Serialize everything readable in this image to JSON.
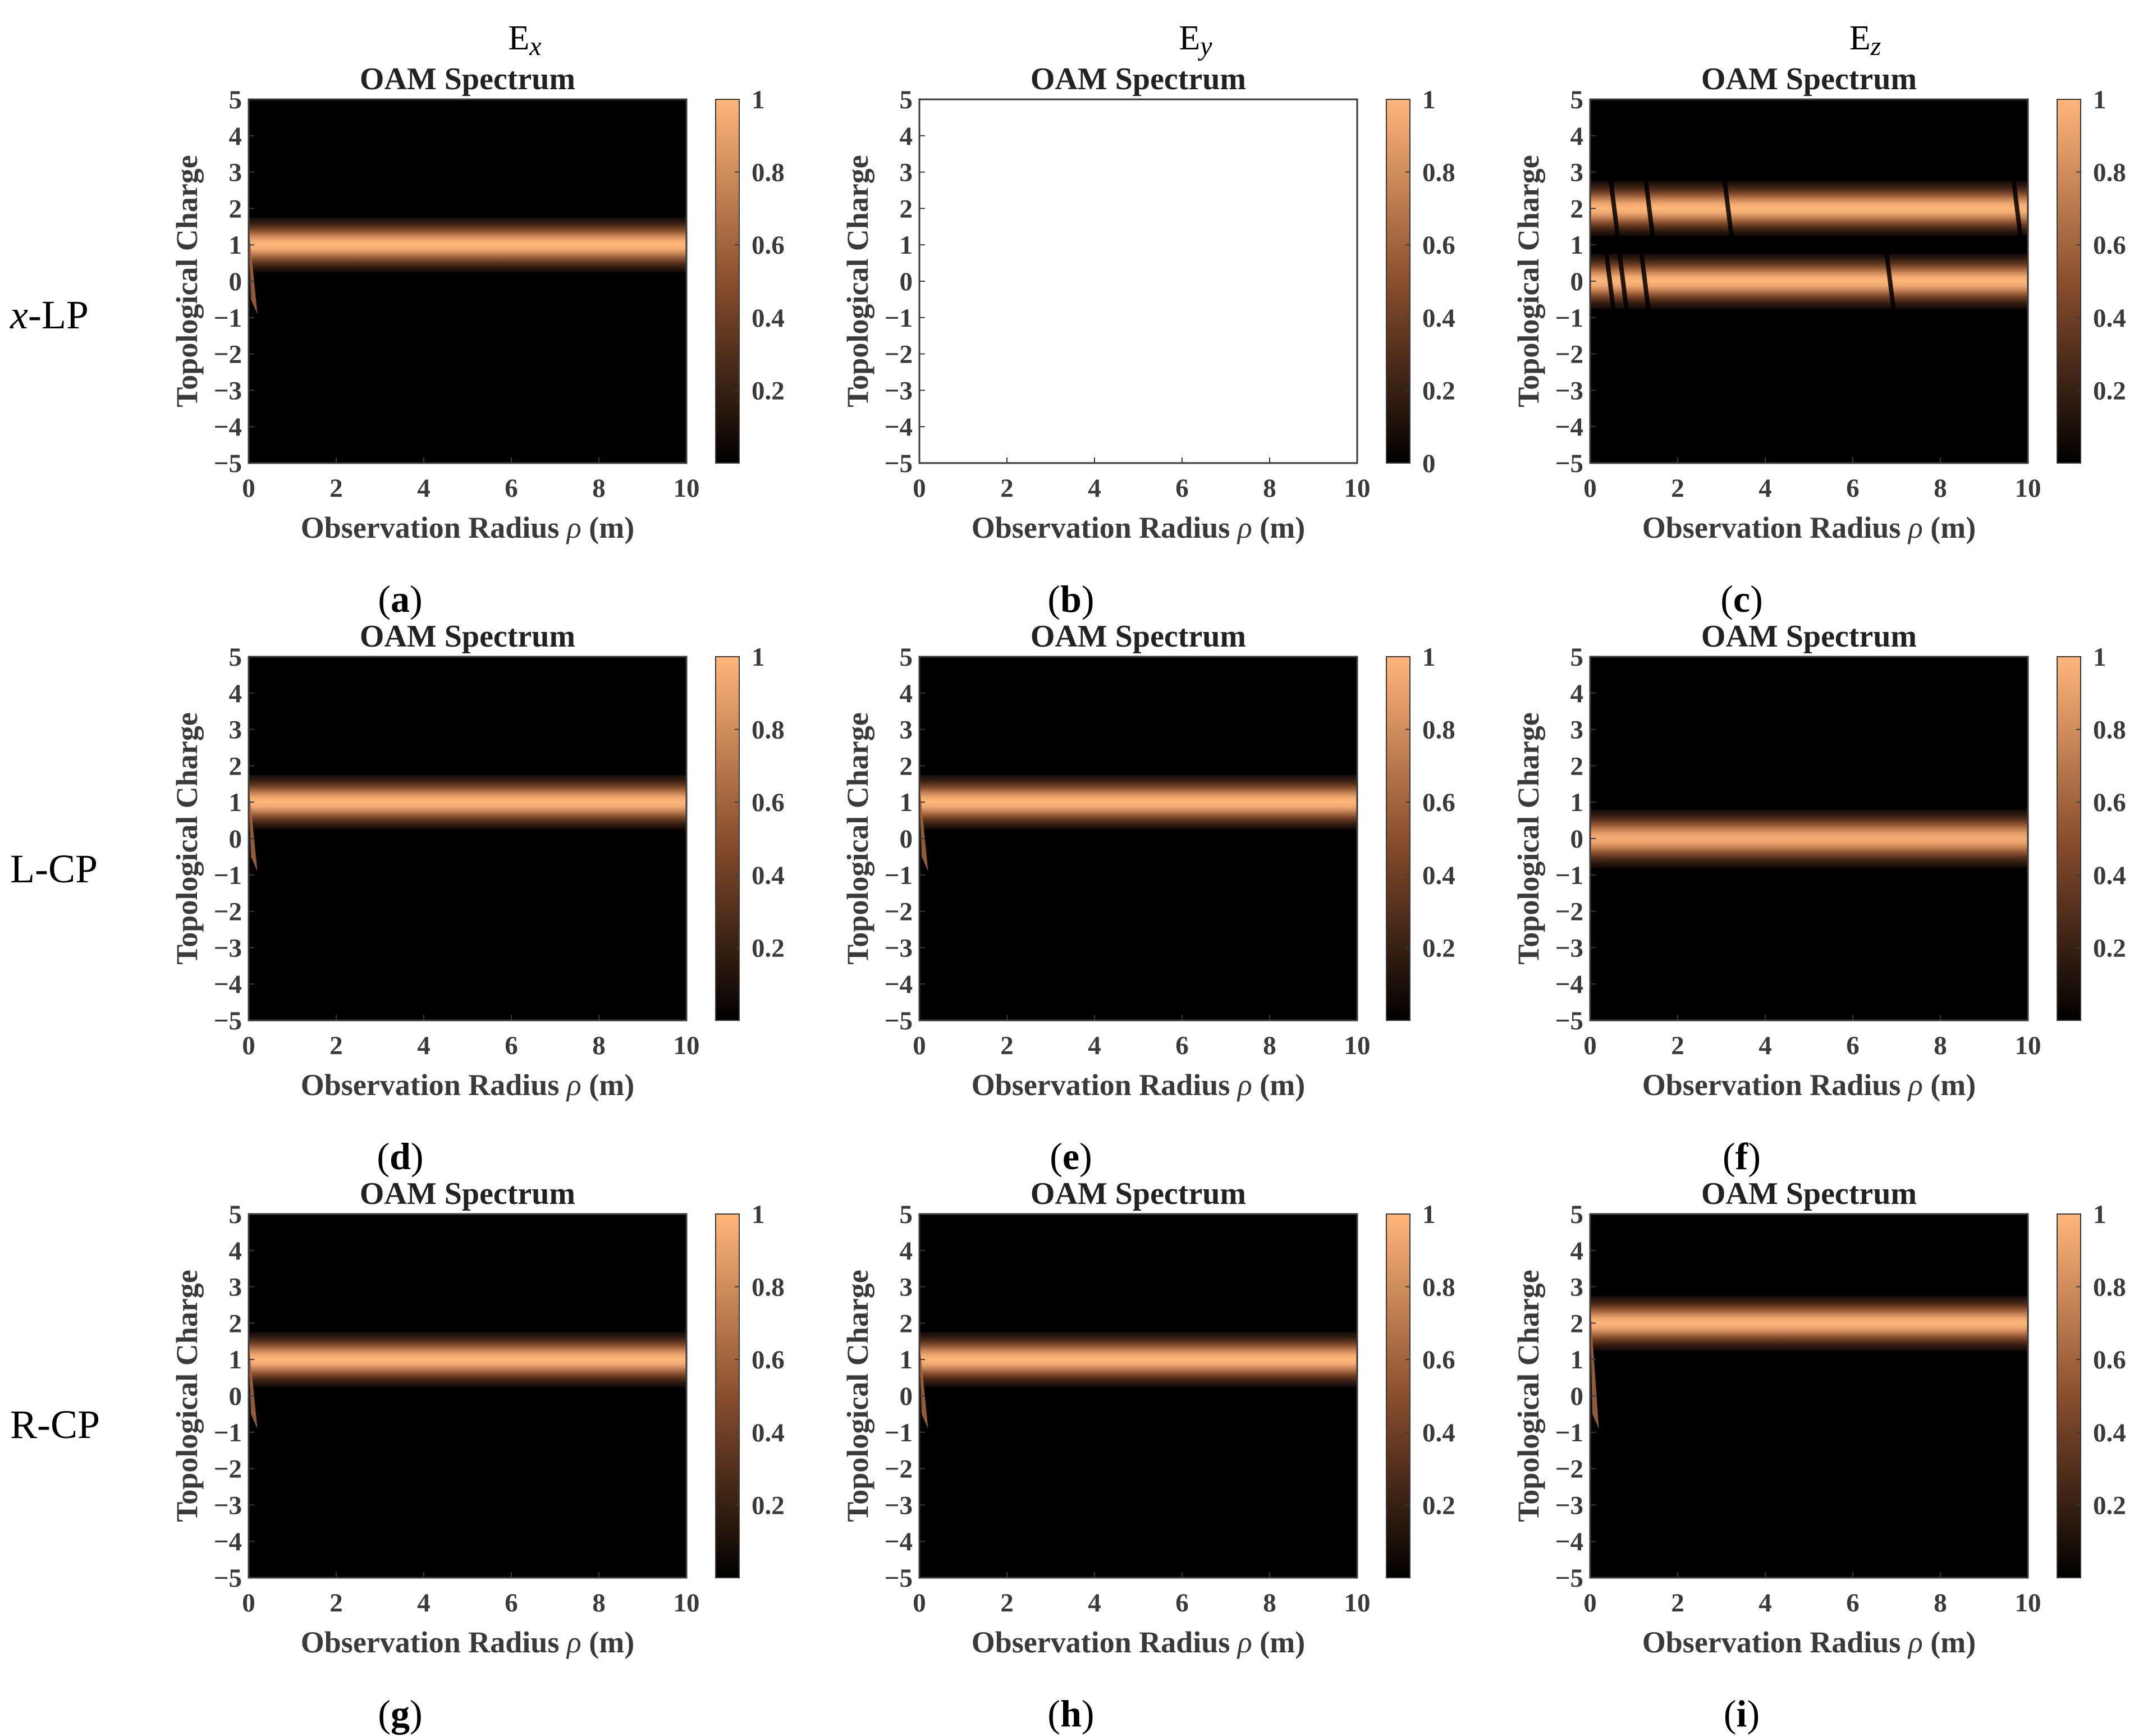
{
  "figure": {
    "column_headers": [
      {
        "base": "E",
        "sub": "x"
      },
      {
        "base": "E",
        "sub": "y"
      },
      {
        "base": "E",
        "sub": "z"
      }
    ],
    "row_labels": [
      {
        "italic": "x",
        "rest": "-LP"
      },
      {
        "italic": "",
        "rest": "L-CP"
      },
      {
        "italic": "",
        "rest": "R-CP"
      }
    ],
    "colormap": {
      "low": "#000000",
      "mid": "#8a4f2e",
      "high": "#ffb67a"
    }
  },
  "chart_data": [
    {
      "type": "heatmap",
      "panel": "a",
      "caption": "a",
      "title": "OAM Spectrum",
      "xlabel": "Observation Radius",
      "xlabel_symbol": "ρ",
      "xlabel_unit": " (m)",
      "ylabel": "Topological Charge",
      "xlim": [
        0,
        10
      ],
      "ylim": [
        -5,
        5
      ],
      "xticks": [
        0,
        2,
        4,
        6,
        8,
        10
      ],
      "yticks": [
        -5,
        -4,
        -3,
        -2,
        -1,
        0,
        1,
        2,
        3,
        4,
        5
      ],
      "colorbar_ticks": [
        "0.2",
        "0.4",
        "0.6",
        "0.8",
        "1"
      ],
      "blank": false,
      "bands": [
        {
          "charge": 1,
          "halfwidth": 0.75,
          "intensity": 1.0
        }
      ],
      "edge_feature": {
        "x_start": 0.0,
        "x_end": 0.2,
        "charge_top": 1.5,
        "charge_bottom": -0.9,
        "intensity": 0.6
      },
      "notches": []
    },
    {
      "type": "heatmap",
      "panel": "b",
      "caption": "b",
      "title": "OAM Spectrum",
      "xlabel": "Observation Radius",
      "xlabel_symbol": "ρ",
      "xlabel_unit": " (m)",
      "ylabel": "Topological Charge",
      "xlim": [
        0,
        10
      ],
      "ylim": [
        -5,
        5
      ],
      "xticks": [
        0,
        2,
        4,
        6,
        8,
        10
      ],
      "yticks": [
        -5,
        -4,
        -3,
        -2,
        -1,
        0,
        1,
        2,
        3,
        4,
        5
      ],
      "colorbar_ticks": [
        "0",
        "0.2",
        "0.4",
        "0.6",
        "0.8",
        "1"
      ],
      "blank": true,
      "bands": [],
      "notches": []
    },
    {
      "type": "heatmap",
      "panel": "c",
      "caption": "c",
      "title": "OAM Spectrum",
      "xlabel": "Observation Radius",
      "xlabel_symbol": "ρ",
      "xlabel_unit": " (m)",
      "ylabel": "Topological Charge",
      "xlim": [
        0,
        10
      ],
      "ylim": [
        -5,
        5
      ],
      "xticks": [
        0,
        2,
        4,
        6,
        8,
        10
      ],
      "yticks": [
        -5,
        -4,
        -3,
        -2,
        -1,
        0,
        1,
        2,
        3,
        4,
        5
      ],
      "colorbar_ticks": [
        "0.2",
        "0.4",
        "0.6",
        "0.8",
        "1"
      ],
      "blank": false,
      "bands": [
        {
          "charge": 2,
          "halfwidth": 0.75,
          "intensity": 1.0
        },
        {
          "charge": 0,
          "halfwidth": 0.75,
          "intensity": 1.0
        }
      ],
      "notches": [
        {
          "x": 0.5,
          "band": 0
        },
        {
          "x": 1.3,
          "band": 0
        },
        {
          "x": 3.1,
          "band": 0
        },
        {
          "x": 9.7,
          "band": 0
        },
        {
          "x": 0.4,
          "band": 1
        },
        {
          "x": 0.7,
          "band": 1
        },
        {
          "x": 1.2,
          "band": 1
        },
        {
          "x": 6.8,
          "band": 1
        }
      ]
    },
    {
      "type": "heatmap",
      "panel": "d",
      "caption": "d",
      "title": "OAM Spectrum",
      "xlabel": "Observation Radius",
      "xlabel_symbol": "ρ",
      "xlabel_unit": " (m)",
      "ylabel": "Topological Charge",
      "xlim": [
        0,
        10
      ],
      "ylim": [
        -5,
        5
      ],
      "xticks": [
        0,
        2,
        4,
        6,
        8,
        10
      ],
      "yticks": [
        -5,
        -4,
        -3,
        -2,
        -1,
        0,
        1,
        2,
        3,
        4,
        5
      ],
      "colorbar_ticks": [
        "0.2",
        "0.4",
        "0.6",
        "0.8",
        "1"
      ],
      "blank": false,
      "bands": [
        {
          "charge": 1,
          "halfwidth": 0.75,
          "intensity": 1.0
        }
      ],
      "edge_feature": {
        "x_start": 0.0,
        "x_end": 0.2,
        "charge_top": 1.5,
        "charge_bottom": -0.9,
        "intensity": 0.6
      },
      "notches": []
    },
    {
      "type": "heatmap",
      "panel": "e",
      "caption": "e",
      "title": "OAM Spectrum",
      "xlabel": "Observation Radius",
      "xlabel_symbol": "ρ",
      "xlabel_unit": " (m)",
      "ylabel": "Topological Charge",
      "xlim": [
        0,
        10
      ],
      "ylim": [
        -5,
        5
      ],
      "xticks": [
        0,
        2,
        4,
        6,
        8,
        10
      ],
      "yticks": [
        -5,
        -4,
        -3,
        -2,
        -1,
        0,
        1,
        2,
        3,
        4,
        5
      ],
      "colorbar_ticks": [
        "0.2",
        "0.4",
        "0.6",
        "0.8",
        "1"
      ],
      "blank": false,
      "bands": [
        {
          "charge": 1,
          "halfwidth": 0.75,
          "intensity": 1.0
        }
      ],
      "edge_feature": {
        "x_start": 0.0,
        "x_end": 0.2,
        "charge_top": 1.5,
        "charge_bottom": -0.9,
        "intensity": 0.6
      },
      "notches": []
    },
    {
      "type": "heatmap",
      "panel": "f",
      "caption": "f",
      "title": "OAM Spectrum",
      "xlabel": "Observation Radius",
      "xlabel_symbol": "ρ",
      "xlabel_unit": " (m)",
      "ylabel": "Topological Charge",
      "xlim": [
        0,
        10
      ],
      "ylim": [
        -5,
        5
      ],
      "xticks": [
        0,
        2,
        4,
        6,
        8,
        10
      ],
      "yticks": [
        -5,
        -4,
        -3,
        -2,
        -1,
        0,
        1,
        2,
        3,
        4,
        5
      ],
      "colorbar_ticks": [
        "0.2",
        "0.4",
        "0.6",
        "0.8",
        "1"
      ],
      "blank": false,
      "bands": [
        {
          "charge": 0,
          "halfwidth": 0.8,
          "intensity": 0.95
        }
      ],
      "notches": []
    },
    {
      "type": "heatmap",
      "panel": "g",
      "caption": "g",
      "title": "OAM Spectrum",
      "xlabel": "Observation Radius",
      "xlabel_symbol": "ρ",
      "xlabel_unit": " (m)",
      "ylabel": "Topological Charge",
      "xlim": [
        0,
        10
      ],
      "ylim": [
        -5,
        5
      ],
      "xticks": [
        0,
        2,
        4,
        6,
        8,
        10
      ],
      "yticks": [
        -5,
        -4,
        -3,
        -2,
        -1,
        0,
        1,
        2,
        3,
        4,
        5
      ],
      "colorbar_ticks": [
        "0.2",
        "0.4",
        "0.6",
        "0.8",
        "1"
      ],
      "blank": false,
      "bands": [
        {
          "charge": 1,
          "halfwidth": 0.75,
          "intensity": 1.0
        }
      ],
      "edge_feature": {
        "x_start": 0.0,
        "x_end": 0.2,
        "charge_top": 1.5,
        "charge_bottom": -0.9,
        "intensity": 0.6
      },
      "notches": []
    },
    {
      "type": "heatmap",
      "panel": "h",
      "caption": "h",
      "title": "OAM Spectrum",
      "xlabel": "Observation Radius",
      "xlabel_symbol": "ρ",
      "xlabel_unit": " (m)",
      "ylabel": "Topological Charge",
      "xlim": [
        0,
        10
      ],
      "ylim": [
        -5,
        5
      ],
      "xticks": [
        0,
        2,
        4,
        6,
        8,
        10
      ],
      "yticks": [
        -5,
        -4,
        -3,
        -2,
        -1,
        0,
        1,
        2,
        3,
        4,
        5
      ],
      "colorbar_ticks": [
        "0.2",
        "0.4",
        "0.6",
        "0.8",
        "1"
      ],
      "blank": false,
      "bands": [
        {
          "charge": 1,
          "halfwidth": 0.75,
          "intensity": 1.0
        }
      ],
      "edge_feature": {
        "x_start": 0.0,
        "x_end": 0.2,
        "charge_top": 1.5,
        "charge_bottom": -0.9,
        "intensity": 0.6
      },
      "notches": []
    },
    {
      "type": "heatmap",
      "panel": "i",
      "caption": "i",
      "title": "OAM Spectrum",
      "xlabel": "Observation Radius",
      "xlabel_symbol": "ρ",
      "xlabel_unit": " (m)",
      "ylabel": "Topological Charge",
      "xlim": [
        0,
        10
      ],
      "ylim": [
        -5,
        5
      ],
      "xticks": [
        0,
        2,
        4,
        6,
        8,
        10
      ],
      "yticks": [
        -5,
        -4,
        -3,
        -2,
        -1,
        0,
        1,
        2,
        3,
        4,
        5
      ],
      "colorbar_ticks": [
        "0.2",
        "0.4",
        "0.6",
        "0.8",
        "1"
      ],
      "blank": false,
      "bands": [
        {
          "charge": 2,
          "halfwidth": 0.75,
          "intensity": 1.0
        }
      ],
      "edge_feature": {
        "x_start": 0.0,
        "x_end": 0.2,
        "charge_top": 2.5,
        "charge_bottom": -0.9,
        "intensity": 0.6
      },
      "notches": []
    }
  ]
}
